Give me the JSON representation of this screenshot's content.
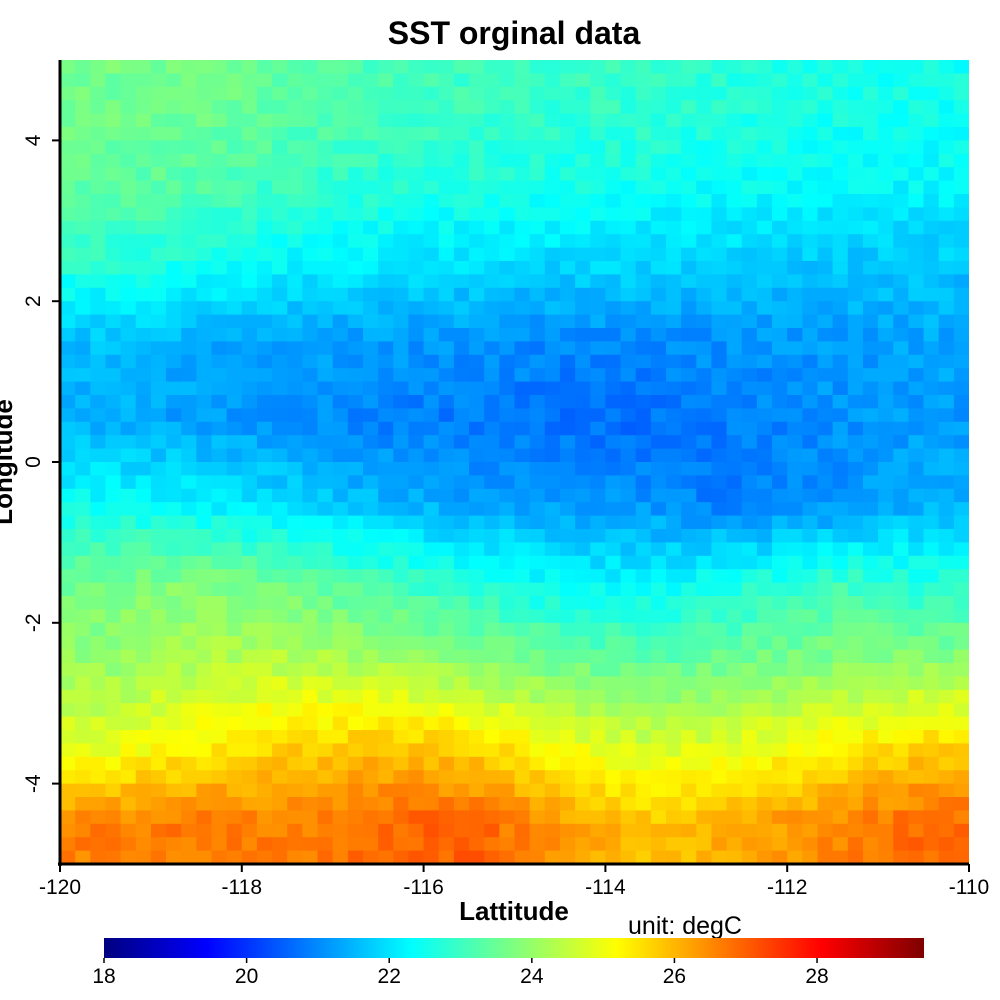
{
  "chart_data": {
    "type": "heatmap",
    "title": "SST orginal data",
    "xlabel": "Lattitude",
    "ylabel": "Longitude",
    "xlim": [
      -120,
      -110
    ],
    "ylim": [
      -5,
      5
    ],
    "x_ticks": [
      -120,
      -118,
      -116,
      -114,
      -112,
      -110
    ],
    "y_ticks": [
      -4,
      -2,
      0,
      2,
      4
    ],
    "colorbar": {
      "unit_label": "unit: degC",
      "range": [
        18,
        29.5
      ],
      "ticks": [
        18,
        20,
        22,
        24,
        26,
        28
      ],
      "colormap": [
        "#00007f",
        "#0000ff",
        "#007fff",
        "#00ffff",
        "#7fff7f",
        "#ffff00",
        "#ff7f00",
        "#ff0000",
        "#7f0000"
      ]
    },
    "missing_color": "#ffffff",
    "grid_summary": {
      "cols": 10,
      "rows": 10,
      "x_centers": [
        -119.5,
        -118.5,
        -117.5,
        -116.5,
        -115.5,
        -114.5,
        -113.5,
        -112.5,
        -111.5,
        -110.5
      ],
      "y_centers": [
        4.5,
        3.5,
        2.5,
        1.5,
        0.5,
        -0.5,
        -1.5,
        -2.5,
        -3.5,
        -4.5
      ],
      "values": [
        [
          23.6,
          23.6,
          23.4,
          23.1,
          23.0,
          22.9,
          22.9,
          22.7,
          22.6,
          22.5
        ],
        [
          23.4,
          23.3,
          23.0,
          22.8,
          22.7,
          22.6,
          22.5,
          22.4,
          22.3,
          22.3
        ],
        [
          22.8,
          22.6,
          22.3,
          22.1,
          22.0,
          21.9,
          21.9,
          21.8,
          21.7,
          21.7
        ],
        [
          21.6,
          21.4,
          21.3,
          21.2,
          21.1,
          21.0,
          21.0,
          21.1,
          21.2,
          21.3
        ],
        [
          21.4,
          21.2,
          21.1,
          20.9,
          20.8,
          20.7,
          20.7,
          20.9,
          21.1,
          21.2
        ],
        [
          22.4,
          22.2,
          21.9,
          21.5,
          21.3,
          21.2,
          21.1,
          20.8,
          21.0,
          21.4
        ],
        [
          23.6,
          23.8,
          23.5,
          23.1,
          22.7,
          22.3,
          22.2,
          22.6,
          23.0,
          22.7
        ],
        [
          24.0,
          24.3,
          24.4,
          24.2,
          23.9,
          23.6,
          23.4,
          23.6,
          23.8,
          23.9
        ],
        [
          24.8,
          25.3,
          25.6,
          25.8,
          25.6,
          25.0,
          24.6,
          24.9,
          25.2,
          25.6
        ],
        [
          26.6,
          26.7,
          26.6,
          26.9,
          27.0,
          26.3,
          25.8,
          26.2,
          26.5,
          26.9
        ]
      ]
    }
  }
}
